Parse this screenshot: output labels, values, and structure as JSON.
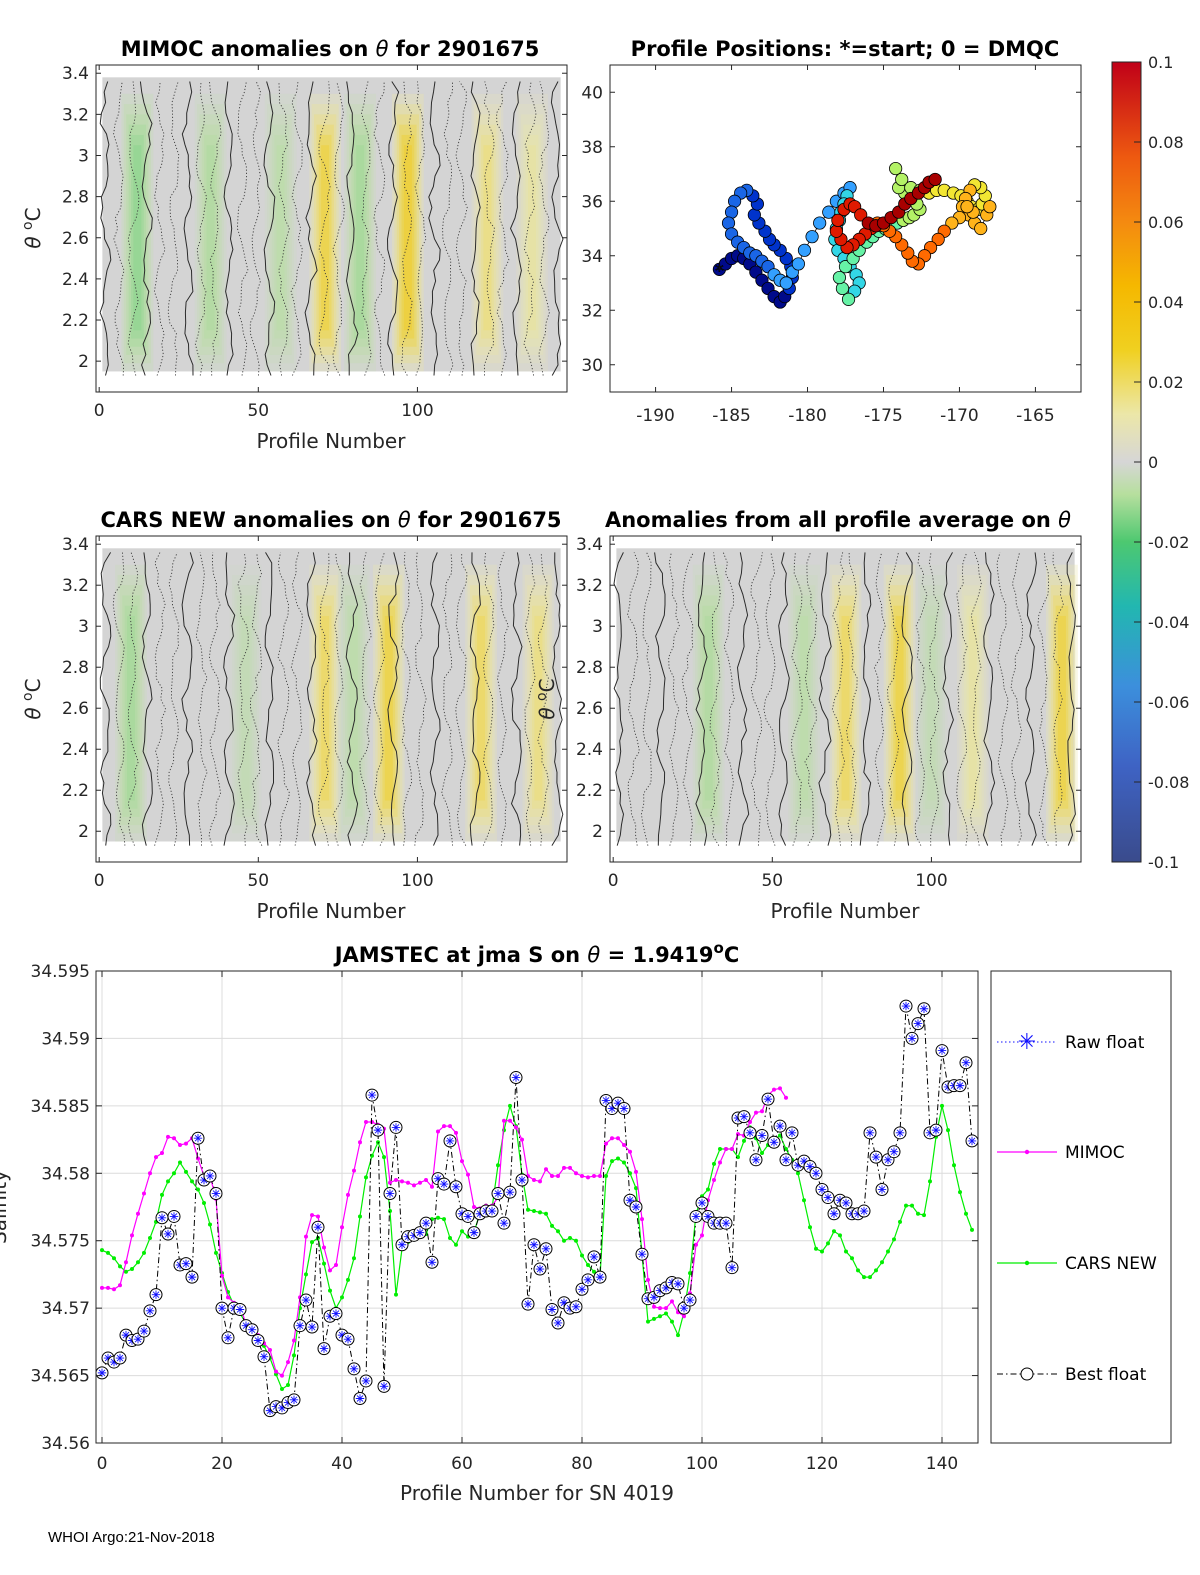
{
  "footer": "WHOI Argo:21-Nov-2018",
  "colors": {
    "mimoc": "#ff00ff",
    "cars": "#00ee00",
    "raw": "#1010ff",
    "best": "#000000",
    "nan_bg": "#d4d4d4"
  },
  "colorbar": {
    "ticks": [
      "0.1",
      "0.08",
      "0.06",
      "0.04",
      "0.02",
      "0",
      "-0.02",
      "-0.04",
      "-0.06",
      "-0.08",
      "-0.1"
    ],
    "range": [
      -0.1,
      0.1
    ]
  },
  "chart_data": [
    {
      "id": "mimoc",
      "type": "heatmap",
      "title_main": "MIMOC anomalies on ",
      "title_tail": "  for 2901675",
      "xlabel": "Profile Number",
      "ylabel_main": "θ ",
      "ylabel_sup": "o",
      "ylabel_unit": "C",
      "xlim": [
        -1,
        147
      ],
      "ylim": [
        1.85,
        3.44
      ],
      "xticks": [
        "0",
        "50",
        "100"
      ],
      "yticks": [
        "3.4",
        "3.2",
        "3",
        "2.8",
        "2.6",
        "2.4",
        "2.2",
        "2"
      ],
      "warm_bands": [
        {
          "x": 71,
          "v": 0.03
        },
        {
          "x": 97,
          "v": 0.035
        },
        {
          "x": 122,
          "v": 0.02
        },
        {
          "x": 136,
          "v": 0.015
        }
      ],
      "cool_bands": [
        {
          "x": 12,
          "v": -0.015
        },
        {
          "x": 35,
          "v": -0.01
        },
        {
          "x": 57,
          "v": -0.008
        },
        {
          "x": 82,
          "v": -0.012
        }
      ]
    },
    {
      "id": "positions",
      "type": "scatter",
      "title": "Profile Positions: *=start; 0 = DMQC",
      "xlim": [
        -193,
        -162
      ],
      "ylim": [
        29,
        41
      ],
      "xticks": [
        "-190",
        "-185",
        "-180",
        "-175",
        "-170",
        "-165"
      ],
      "yticks": [
        "40",
        "38",
        "36",
        "34",
        "32",
        "30"
      ],
      "lon": [
        -185.8,
        -185.4,
        -185.0,
        -184.6,
        -184.2,
        -183.8,
        -183.4,
        -183.0,
        -182.6,
        -182.2,
        -181.8,
        -181.5,
        -181.2,
        -181.0,
        -181.1,
        -181.4,
        -181.8,
        -182.2,
        -182.5,
        -182.8,
        -183.2,
        -183.5,
        -183.3,
        -183.6,
        -184.0,
        -184.4,
        -184.8,
        -185.0,
        -185.2,
        -185.0,
        -184.6,
        -184.2,
        -183.8,
        -183.4,
        -183.0,
        -182.6,
        -182.2,
        -181.8,
        -181.4,
        -181.0,
        -180.6,
        -180.2,
        -179.7,
        -179.2,
        -178.6,
        -178.1,
        -177.6,
        -177.2,
        -177.4,
        -177.6,
        -177.8,
        -177.9,
        -178.1,
        -178.2,
        -178.0,
        -177.6,
        -177.2,
        -176.8,
        -176.6,
        -176.9,
        -177.3,
        -177.7,
        -177.9,
        -177.5,
        -177.0,
        -176.6,
        -176.1,
        -175.7,
        -175.3,
        -174.9,
        -174.5,
        -174.1,
        -173.7,
        -173.3,
        -173.0,
        -172.6,
        -172.8,
        -173.2,
        -173.6,
        -174.0,
        -174.2,
        -173.8,
        -173.2,
        -172.6,
        -172.0,
        -171.5,
        -171.0,
        -170.4,
        -169.9,
        -169.5,
        -169.2,
        -168.8,
        -168.5,
        -168.3,
        -168.6,
        -169.0,
        -169.3,
        -169.6,
        -169.8,
        -169.4,
        -169.0,
        -168.6,
        -168.2,
        -168.0,
        -169.1,
        -169.5,
        -170.0,
        -170.5,
        -171.0,
        -171.4,
        -171.9,
        -172.3,
        -172.7,
        -173.1,
        -173.4,
        -173.8,
        -174.2,
        -174.6,
        -175.0,
        -175.4,
        -175.8,
        -176.2,
        -176.6,
        -177.0,
        -177.4,
        -177.8,
        -178.1,
        -178.0,
        -177.6,
        -177.2,
        -176.9,
        -176.5,
        -176.0,
        -175.5,
        -175.0,
        -174.5,
        -174.0,
        -173.6,
        -173.2,
        -172.7,
        -172.3,
        -172.0,
        -171.6,
        -171.2,
        -170.8
      ],
      "lat": [
        33.5,
        33.7,
        33.9,
        34.0,
        33.9,
        33.7,
        33.4,
        33.1,
        32.8,
        32.5,
        32.3,
        32.5,
        32.8,
        33.2,
        33.6,
        33.9,
        34.2,
        34.4,
        34.6,
        34.9,
        35.2,
        35.5,
        35.9,
        36.2,
        36.4,
        36.3,
        36.0,
        35.6,
        35.2,
        34.8,
        34.5,
        34.3,
        34.1,
        34.0,
        33.8,
        33.6,
        33.3,
        33.1,
        33.0,
        33.4,
        33.7,
        34.2,
        34.7,
        35.2,
        35.6,
        36.0,
        36.3,
        36.5,
        36.2,
        35.9,
        35.6,
        35.3,
        35.0,
        34.6,
        34.2,
        33.9,
        33.6,
        33.3,
        33.0,
        32.7,
        32.4,
        32.8,
        33.2,
        33.6,
        33.9,
        34.2,
        34.5,
        34.7,
        34.9,
        35.0,
        35.1,
        35.2,
        35.3,
        35.4,
        35.5,
        35.7,
        35.9,
        36.1,
        36.3,
        36.5,
        37.2,
        36.8,
        36.5,
        36.4,
        36.3,
        36.4,
        36.4,
        36.3,
        36.2,
        36.0,
        35.8,
        35.7,
        35.9,
        36.2,
        36.5,
        36.6,
        36.4,
        36.1,
        35.8,
        35.5,
        35.2,
        35.0,
        35.5,
        35.8,
        35.6,
        35.8,
        35.4,
        35.2,
        34.9,
        34.6,
        34.3,
        34.0,
        33.7,
        33.8,
        34.1,
        34.4,
        34.7,
        34.9,
        35.1,
        35.2,
        35.0,
        34.8,
        34.6,
        34.4,
        34.3,
        34.6,
        34.9,
        35.3,
        35.7,
        35.9,
        35.8,
        35.5,
        35.2,
        35.1,
        35.2,
        35.4,
        35.6,
        35.9,
        36.1,
        36.3,
        36.5,
        36.7,
        36.8
      ],
      "start_marker": "*"
    },
    {
      "id": "cars",
      "type": "heatmap",
      "title_main": "CARS NEW anomalies on ",
      "title_tail": " for 2901675",
      "xlabel": "Profile Number",
      "ylabel_main": "θ ",
      "ylabel_sup": "o",
      "ylabel_unit": "C",
      "xlim": [
        -1,
        147
      ],
      "ylim": [
        1.85,
        3.44
      ],
      "xticks": [
        "0",
        "50",
        "100"
      ],
      "yticks": [
        "3.4",
        "3.2",
        "3",
        "2.8",
        "2.6",
        "2.4",
        "2.2",
        "2"
      ],
      "warm_bands": [
        {
          "x": 71,
          "v": 0.025
        },
        {
          "x": 91,
          "v": 0.03
        },
        {
          "x": 120,
          "v": 0.025
        },
        {
          "x": 138,
          "v": 0.02
        }
      ],
      "cool_bands": [
        {
          "x": 10,
          "v": -0.012
        },
        {
          "x": 46,
          "v": -0.006
        },
        {
          "x": 80,
          "v": -0.008
        }
      ]
    },
    {
      "id": "average",
      "type": "heatmap",
      "title_main": "Anomalies from all profile average on ",
      "title_tail": "",
      "xlabel": "Profile Number",
      "ylabel_main": "θ ",
      "ylabel_sup": "o",
      "ylabel_unit": "C",
      "xlim": [
        -1,
        147
      ],
      "ylim": [
        1.85,
        3.44
      ],
      "xticks": [
        "0",
        "50",
        "100"
      ],
      "yticks": [
        "3.4",
        "3.2",
        "3",
        "2.8",
        "2.6",
        "2.4",
        "2.2",
        "2"
      ],
      "warm_bands": [
        {
          "x": 73,
          "v": 0.025
        },
        {
          "x": 90,
          "v": 0.03
        },
        {
          "x": 113,
          "v": 0.015
        },
        {
          "x": 141,
          "v": 0.03
        }
      ],
      "cool_bands": [
        {
          "x": 30,
          "v": -0.01
        },
        {
          "x": 60,
          "v": -0.008
        },
        {
          "x": 100,
          "v": -0.006
        }
      ]
    },
    {
      "id": "salinity",
      "type": "line",
      "title_main": "JAMSTEC at jma S on ",
      "title_mid": " = 1.9419",
      "title_sup": "o",
      "title_tail": "C",
      "xlabel": "Profile Number for SN 4019",
      "ylabel": "Salinity",
      "xlim": [
        -1,
        146
      ],
      "ylim": [
        34.56,
        34.595
      ],
      "xticks": [
        "0",
        "20",
        "40",
        "60",
        "80",
        "100",
        "120",
        "140"
      ],
      "yticks": [
        "34.595",
        "34.59",
        "34.585",
        "34.58",
        "34.575",
        "34.57",
        "34.565",
        "34.56"
      ],
      "legend": [
        "Raw float",
        "MIMOC",
        "CARS NEW",
        "Best float"
      ],
      "legend_position": "outside-right",
      "series": [
        {
          "name": "Best float",
          "values": [
            34.5652,
            34.5663,
            34.566,
            34.5663,
            34.568,
            34.5676,
            34.5677,
            34.5683,
            34.5698,
            34.571,
            34.5767,
            34.5755,
            34.5768,
            34.5732,
            34.5733,
            34.5723,
            34.5826,
            34.5795,
            34.5798,
            34.5785,
            34.57,
            34.5678,
            34.57,
            34.5699,
            34.5687,
            34.5684,
            34.5676,
            34.5664,
            34.5624,
            34.5627,
            34.5626,
            34.563,
            34.5632,
            34.5687,
            34.5706,
            34.5686,
            34.576,
            34.567,
            34.5694,
            34.5696,
            34.568,
            34.5677,
            34.5655,
            34.5633,
            34.5646,
            34.5858,
            34.5832,
            34.5642,
            34.5785,
            34.5834,
            34.5747,
            34.5753,
            34.5754,
            34.5756,
            34.5763,
            34.5734,
            34.5796,
            34.5792,
            34.5824,
            34.579,
            34.577,
            34.5768,
            34.5756,
            34.577,
            34.5772,
            34.5772,
            34.5785,
            34.5763,
            34.5786,
            34.5871,
            34.5795,
            34.5703,
            34.5747,
            34.5729,
            34.5744,
            34.5699,
            34.5689,
            34.5704,
            34.57,
            34.5701,
            34.5714,
            34.5721,
            34.5738,
            34.5723,
            34.5854,
            34.5848,
            34.5852,
            34.5848,
            34.578,
            34.5775,
            34.574,
            34.5707,
            34.5708,
            34.5713,
            34.5715,
            34.5719,
            34.5718,
            34.57,
            34.5706,
            34.5768,
            34.5778,
            34.5768,
            34.5763,
            34.5763,
            34.5763,
            34.573,
            34.5841,
            34.5842,
            34.583,
            34.581,
            34.5828,
            34.5855,
            34.5823,
            34.5835,
            34.581,
            34.583,
            34.5806,
            34.5809,
            34.5805,
            34.58,
            34.5788,
            34.5782,
            34.577,
            34.578,
            34.5778,
            34.577,
            34.577,
            34.5772,
            34.583,
            34.5812,
            34.5788,
            34.581,
            34.5816,
            34.583,
            34.5924,
            34.59,
            34.5911,
            34.5922,
            34.583,
            34.5832,
            34.5891,
            34.5864,
            34.5865,
            34.5865,
            34.5882,
            34.5824
          ]
        },
        {
          "name": "MIMOC",
          "values": [
            34.5715,
            34.5715,
            34.5714,
            34.5717,
            34.5734,
            34.5754,
            34.577,
            34.5785,
            34.58,
            34.5812,
            34.5815,
            34.5827,
            34.5826,
            34.5821,
            34.5822,
            34.5826,
            34.5811,
            34.5798,
            34.5798,
            34.5781,
            34.5724,
            34.5708,
            34.5704,
            34.5702,
            34.5688,
            34.5686,
            34.568,
            34.5674,
            34.5669,
            34.5653,
            34.565,
            34.566,
            34.5676,
            34.5708,
            34.5753,
            34.5769,
            34.5768,
            34.5745,
            34.5728,
            34.5732,
            34.576,
            34.5784,
            34.5802,
            34.5823,
            34.5838,
            34.5838,
            34.5836,
            34.5833,
            34.5793,
            34.5795,
            34.5794,
            34.5793,
            34.5791,
            34.5793,
            34.5795,
            34.579,
            34.5831,
            34.5835,
            34.5835,
            34.583,
            34.5809,
            34.5799,
            34.5775,
            34.5774,
            34.5776,
            34.5776,
            34.5782,
            34.5839,
            34.5839,
            34.5834,
            34.5825,
            34.5798,
            34.5795,
            34.5794,
            34.5803,
            34.5798,
            34.5798,
            34.5804,
            34.5804,
            34.58,
            34.5798,
            34.5797,
            34.5798,
            34.5798,
            34.5822,
            34.5826,
            34.5826,
            34.5821,
            34.5816,
            34.5801,
            34.5766,
            34.5721,
            34.5701,
            34.57,
            34.57,
            34.5705,
            34.5697,
            34.5694,
            34.5711,
            34.5747,
            34.5754,
            34.578,
            34.5795,
            34.5808,
            34.5818,
            34.5818,
            34.5829,
            34.5828,
            34.5838,
            34.5845,
            34.5846,
            34.5858,
            34.5862,
            34.5863,
            34.5856
          ]
        },
        {
          "name": "CARS NEW",
          "values": [
            34.5743,
            34.5741,
            34.5737,
            34.5731,
            34.5727,
            34.5729,
            34.5734,
            34.5741,
            34.5752,
            34.5764,
            34.5784,
            34.5794,
            34.58,
            34.5808,
            34.5801,
            34.5794,
            34.5788,
            34.5778,
            34.5762,
            34.5741,
            34.5726,
            34.5712,
            34.5702,
            34.5696,
            34.5689,
            34.5683,
            34.5679,
            34.5672,
            34.5663,
            34.5651,
            34.564,
            34.5643,
            34.5665,
            34.57,
            34.5725,
            34.5749,
            34.5752,
            34.5733,
            34.5713,
            34.57,
            34.5708,
            34.5721,
            34.5737,
            34.5768,
            34.5797,
            34.5813,
            34.5823,
            34.5812,
            34.5772,
            34.571,
            34.5744,
            34.5749,
            34.5755,
            34.5754,
            34.5755,
            34.5766,
            34.5767,
            34.5766,
            34.5752,
            34.5747,
            34.5757,
            34.5753,
            34.5756,
            34.5771,
            34.5776,
            34.5774,
            34.5806,
            34.5832,
            34.585,
            34.5835,
            34.5799,
            34.5773,
            34.5772,
            34.5771,
            34.577,
            34.5761,
            34.5757,
            34.575,
            34.5752,
            34.575,
            34.5739,
            34.5732,
            34.5727,
            34.5723,
            34.5798,
            34.5809,
            34.5811,
            34.5808,
            34.58,
            34.5789,
            34.574,
            34.569,
            34.5692,
            34.5694,
            34.5696,
            34.569,
            34.568,
            34.5697,
            34.5726,
            34.577,
            34.5783,
            34.5788,
            34.5807,
            34.5818,
            34.5818,
            34.5818,
            34.5812,
            34.5824,
            34.5834,
            34.5826,
            34.5815,
            34.5821,
            34.5825,
            34.5828,
            34.5818,
            34.581,
            34.58,
            34.578,
            34.576,
            34.5744,
            34.5742,
            34.5748,
            34.5757,
            34.5754,
            34.5742,
            34.5737,
            34.5728,
            34.5723,
            34.5723,
            34.5728,
            34.5734,
            34.5742,
            34.5751,
            34.5764,
            34.5776,
            34.5776,
            34.577,
            34.5769,
            34.5794,
            34.5827,
            34.585,
            34.5832,
            34.5806,
            34.5786,
            34.577,
            34.5758
          ]
        }
      ]
    }
  ]
}
